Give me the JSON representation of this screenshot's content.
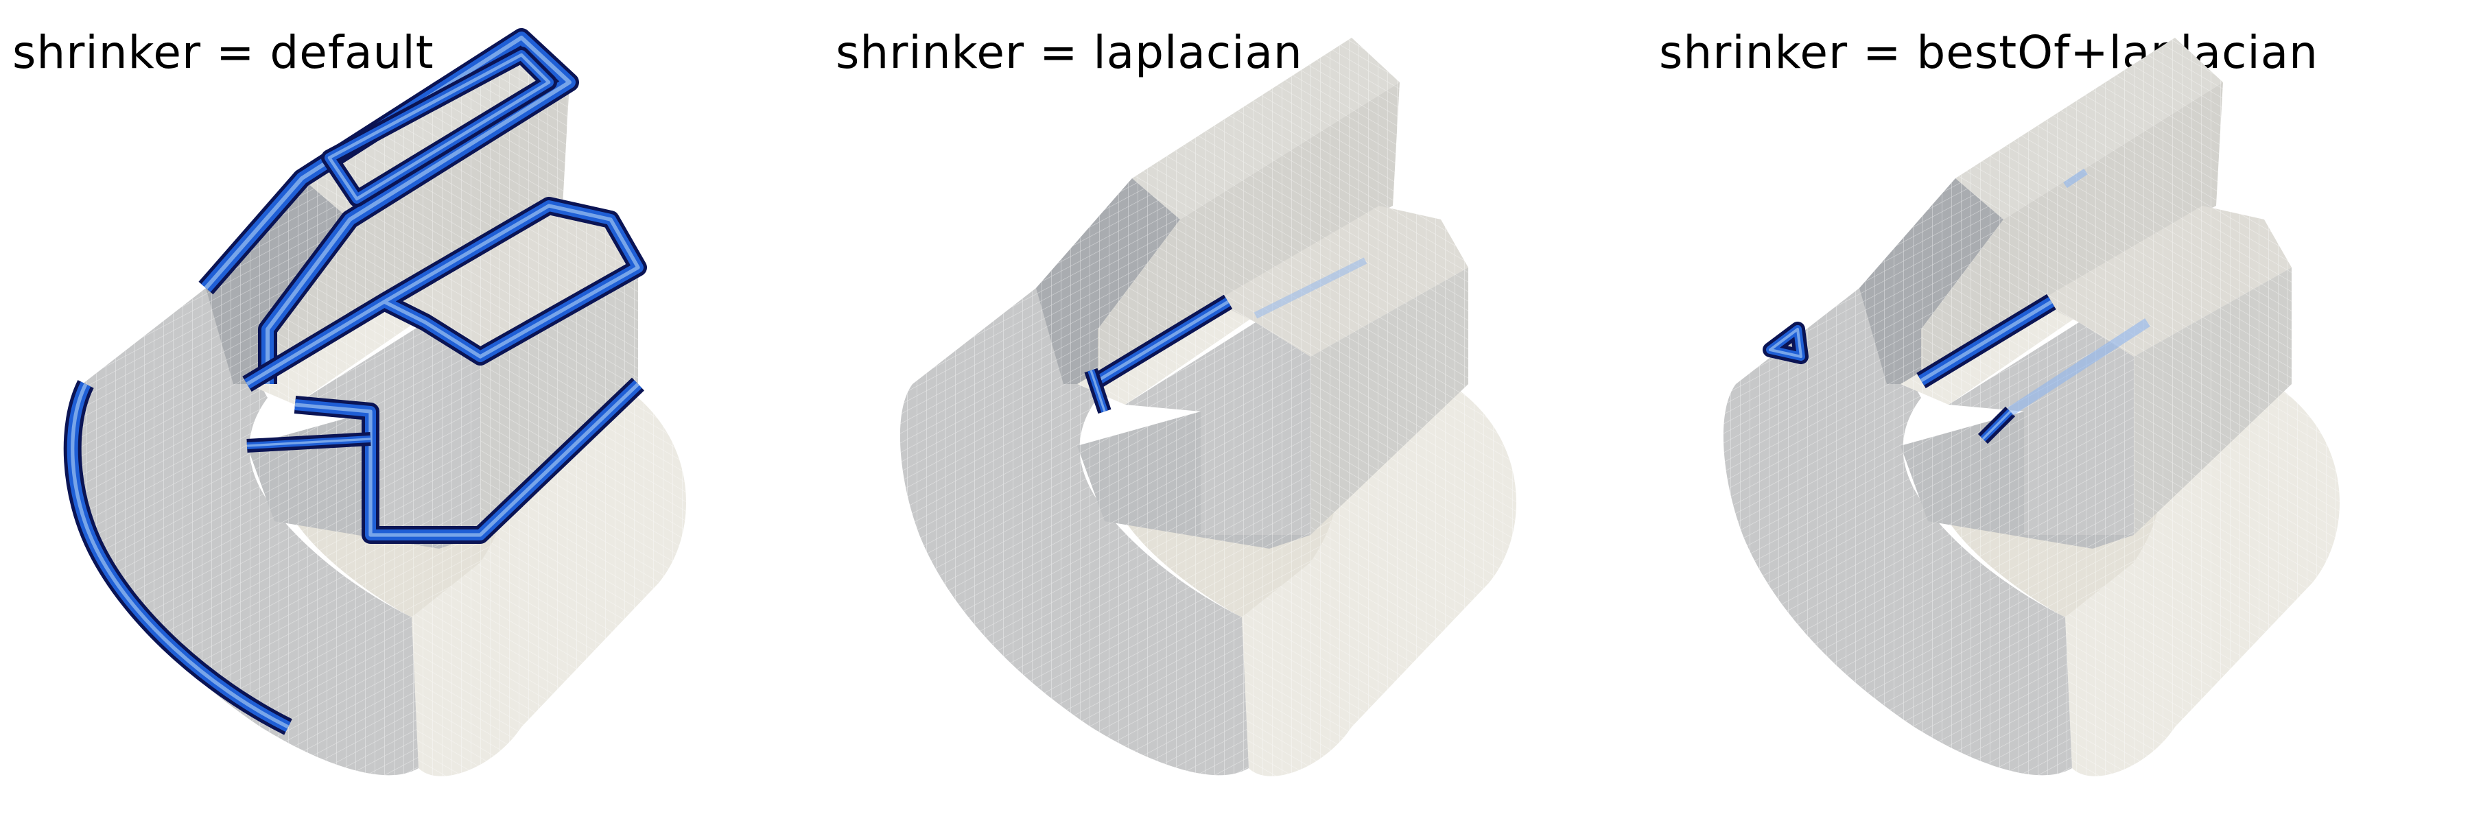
{
  "panels": [
    {
      "label": "shrinker = default",
      "variant": "default"
    },
    {
      "label": "shrinker = laplacian",
      "variant": "laplacian"
    },
    {
      "label": "shrinker = bestOf+laplacian",
      "variant": "bestof"
    }
  ],
  "colors": {
    "background": "#ffffff",
    "mesh_light": "#eceae3",
    "mesh_mid": "#c7c8c9",
    "mesh_dark": "#a9acb0",
    "grid_line": "#ffffff",
    "cell_navy": "#0b1454",
    "cell_blue": "#1f5fd6",
    "cell_light_blue": "#8fb6ee"
  }
}
